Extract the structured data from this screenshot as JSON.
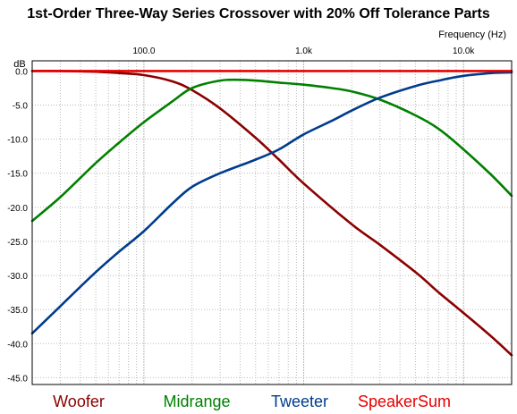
{
  "chart_data": {
    "type": "line",
    "title": "1st-Order Three-Way Series Crossover with 20% Off Tolerance Parts",
    "xlabel": "Frequency  (Hz)",
    "ylabel": "dB",
    "x_scale": "log",
    "xlim": [
      20,
      20000
    ],
    "ylim": [
      -46,
      1.5
    ],
    "grid": true,
    "x_tick_labels": [
      "100.0",
      "1.0k",
      "10.0k"
    ],
    "x_tick_values": [
      100,
      1000,
      10000
    ],
    "y_ticks": [
      0,
      -5,
      -10,
      -15,
      -20,
      -25,
      -30,
      -35,
      -40,
      -45
    ],
    "y_tick_labels": [
      "0.0",
      "-5.0",
      "-10.0",
      "-15.0",
      "-20.0",
      "-25.0",
      "-30.0",
      "-35.0",
      "-40.0",
      "-45.0"
    ],
    "legend_position": "bottom",
    "series": [
      {
        "name": "Woofer",
        "color": "#8b0000",
        "x": [
          20,
          30,
          50,
          70,
          100,
          150,
          200,
          300,
          500,
          700,
          1000,
          2000,
          3000,
          5000,
          7000,
          10000,
          15000,
          20000
        ],
        "y": [
          0,
          0,
          -0.1,
          -0.3,
          -0.6,
          -1.5,
          -2.8,
          -5.5,
          -9.8,
          -13,
          -16.5,
          -22.5,
          -25.5,
          -29.5,
          -32.5,
          -35.5,
          -39,
          -41.7
        ]
      },
      {
        "name": "Midrange",
        "color": "#008000",
        "x": [
          20,
          30,
          50,
          70,
          100,
          150,
          200,
          300,
          400,
          500,
          700,
          1000,
          1500,
          2000,
          3000,
          5000,
          7000,
          10000,
          15000,
          20000
        ],
        "y": [
          -22,
          -18.5,
          -13.5,
          -10.5,
          -7.5,
          -4.5,
          -2.5,
          -1.4,
          -1.3,
          -1.4,
          -1.7,
          -2.0,
          -2.5,
          -3.0,
          -4.2,
          -6.5,
          -8.5,
          -11.5,
          -15.3,
          -18.3
        ]
      },
      {
        "name": "Tweeter",
        "color": "#003c8c",
        "x": [
          20,
          30,
          50,
          70,
          100,
          150,
          200,
          300,
          500,
          700,
          1000,
          1500,
          2000,
          3000,
          5000,
          7000,
          10000,
          15000,
          20000
        ],
        "y": [
          -38.5,
          -34.5,
          -29.5,
          -26.5,
          -23.5,
          -19.5,
          -17,
          -15,
          -13,
          -11.5,
          -9.3,
          -7.3,
          -5.8,
          -3.9,
          -2.2,
          -1.4,
          -0.7,
          -0.3,
          -0.2
        ]
      },
      {
        "name": "SpeakerSum",
        "color": "#e60000",
        "x": [
          20,
          20000
        ],
        "y": [
          0,
          0
        ]
      }
    ]
  }
}
